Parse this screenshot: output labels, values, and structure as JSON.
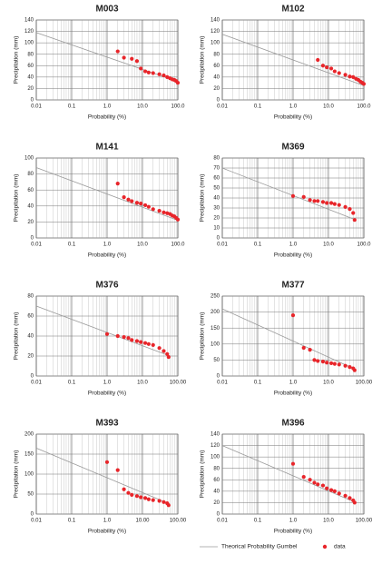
{
  "chart_data": [
    {
      "type": "scatter",
      "title": "M003",
      "xlabel": "Probability (%)",
      "ylabel": "Precipitation (mm)",
      "log_x": true,
      "grid": true,
      "xlim": [
        0.01,
        100
      ],
      "xticks": [
        0.01,
        0.1,
        {
          "value": 1,
          "label": "1.0"
        },
        {
          "value": 10,
          "label": "10.0"
        },
        {
          "value": 100,
          "label": "100.0"
        }
      ],
      "ylim": [
        0,
        140
      ],
      "yticks": [
        0,
        20,
        40,
        60,
        80,
        100,
        120,
        140
      ],
      "series": [
        {
          "style": "line",
          "color": "#9a9a9a",
          "x": [
            0.01,
            100
          ],
          "values": [
            118,
            32
          ]
        },
        {
          "style": "points",
          "color": "#e8252a",
          "x": [
            2,
            3,
            5,
            7,
            9,
            12,
            15,
            20,
            30,
            40,
            50,
            60,
            70,
            80,
            90,
            100
          ],
          "values": [
            85,
            74,
            72,
            68,
            55,
            50,
            48,
            47,
            45,
            43,
            40,
            38,
            36,
            35,
            33,
            30
          ]
        }
      ]
    },
    {
      "type": "scatter",
      "title": "M102",
      "xlabel": "Probability (%)",
      "ylabel": "Precipitation (mm)",
      "log_x": true,
      "grid": true,
      "xlim": [
        0.01,
        100
      ],
      "xticks": [
        0.01,
        0.1,
        {
          "value": 1,
          "label": "1.0"
        },
        {
          "value": 10,
          "label": "10.0"
        },
        {
          "value": 100,
          "label": "100.0"
        }
      ],
      "ylim": [
        0,
        140
      ],
      "yticks": [
        0,
        20,
        40,
        60,
        80,
        100,
        120,
        140
      ],
      "series": [
        {
          "style": "line",
          "color": "#9a9a9a",
          "x": [
            0.01,
            100
          ],
          "values": [
            115,
            25
          ]
        },
        {
          "style": "points",
          "color": "#e8252a",
          "x": [
            5,
            7,
            9,
            12,
            15,
            20,
            30,
            40,
            50,
            60,
            70,
            80,
            90,
            100
          ],
          "values": [
            70,
            60,
            57,
            55,
            50,
            47,
            44,
            41,
            40,
            37,
            35,
            32,
            30,
            28
          ]
        }
      ]
    },
    {
      "type": "scatter",
      "title": "M141",
      "xlabel": "Probability (%)",
      "ylabel": "Precipitation (mm)",
      "log_x": true,
      "grid": true,
      "xlim": [
        0.01,
        100
      ],
      "xticks": [
        0.01,
        0.1,
        {
          "value": 1,
          "label": "1.0"
        },
        {
          "value": 10,
          "label": "10.0"
        },
        {
          "value": 100,
          "label": "100.0"
        }
      ],
      "ylim": [
        0,
        100
      ],
      "yticks": [
        0,
        20,
        40,
        60,
        80,
        100
      ],
      "series": [
        {
          "style": "line",
          "color": "#9a9a9a",
          "x": [
            0.01,
            100
          ],
          "values": [
            88,
            22
          ]
        },
        {
          "style": "points",
          "color": "#e8252a",
          "x": [
            2,
            3,
            4,
            5,
            7,
            9,
            12,
            15,
            20,
            30,
            40,
            50,
            60,
            70,
            80,
            90,
            100
          ],
          "values": [
            68,
            51,
            48,
            46,
            44,
            43,
            41,
            39,
            36,
            34,
            32,
            31,
            30,
            28,
            27,
            25,
            23
          ]
        }
      ]
    },
    {
      "type": "scatter",
      "title": "M369",
      "xlabel": "Probability (%)",
      "ylabel": "Precipitation (mm)",
      "log_x": true,
      "grid": true,
      "xlim": [
        0.01,
        100
      ],
      "xticks": [
        0.01,
        0.1,
        {
          "value": 1,
          "label": "1.0"
        },
        {
          "value": 10,
          "label": "10.0"
        },
        {
          "value": 100,
          "label": "100.0"
        }
      ],
      "ylim": [
        0,
        80
      ],
      "yticks": [
        0,
        10,
        20,
        30,
        40,
        50,
        60,
        70,
        80
      ],
      "series": [
        {
          "style": "line",
          "color": "#9a9a9a",
          "x": [
            0.01,
            60
          ],
          "values": [
            70,
            18
          ]
        },
        {
          "style": "points",
          "color": "#e8252a",
          "x": [
            1,
            2,
            3,
            4,
            5,
            7,
            9,
            12,
            15,
            20,
            30,
            40,
            50,
            55
          ],
          "values": [
            42,
            41,
            38,
            37,
            37,
            36,
            35,
            35,
            34,
            33,
            31,
            29,
            25,
            18
          ]
        }
      ]
    },
    {
      "type": "scatter",
      "title": "M376",
      "xlabel": "Probability (%)",
      "ylabel": "Precipitation (mm)",
      "log_x": true,
      "grid": true,
      "xlim": [
        0.01,
        100
      ],
      "xticks": [
        0.01,
        0.1,
        {
          "value": 1,
          "label": "1.0"
        },
        {
          "value": 10,
          "label": "10.0"
        },
        {
          "value": 100,
          "label": "100.00"
        }
      ],
      "ylim": [
        0,
        80
      ],
      "yticks": [
        0,
        20,
        40,
        60,
        80
      ],
      "series": [
        {
          "style": "line",
          "color": "#9a9a9a",
          "x": [
            0.01,
            60
          ],
          "values": [
            70,
            20
          ]
        },
        {
          "style": "points",
          "color": "#e8252a",
          "x": [
            1,
            2,
            3,
            4,
            5,
            7,
            9,
            12,
            15,
            20,
            30,
            40,
            50,
            55
          ],
          "values": [
            42,
            40,
            39,
            38,
            36,
            35,
            34,
            33,
            32,
            31,
            28,
            25,
            22,
            19
          ]
        }
      ]
    },
    {
      "type": "scatter",
      "title": "M377",
      "xlabel": "Probability (%)",
      "ylabel": "Precipitation (mm)",
      "log_x": true,
      "grid": true,
      "xlim": [
        0.01,
        100
      ],
      "xticks": [
        0.01,
        0.1,
        {
          "value": 1,
          "label": "1.0"
        },
        {
          "value": 10,
          "label": "10.0"
        },
        {
          "value": 100,
          "label": "100.00"
        }
      ],
      "ylim": [
        0,
        250
      ],
      "yticks": [
        0,
        50,
        100,
        150,
        200,
        250
      ],
      "series": [
        {
          "style": "line",
          "color": "#9a9a9a",
          "x": [
            0.01,
            60
          ],
          "values": [
            210,
            20
          ]
        },
        {
          "style": "points",
          "color": "#e8252a",
          "x": [
            1,
            2,
            3,
            4,
            5,
            7,
            9,
            12,
            15,
            20,
            30,
            40,
            50,
            55
          ],
          "values": [
            190,
            88,
            82,
            50,
            47,
            45,
            42,
            40,
            38,
            36,
            32,
            28,
            24,
            18
          ]
        }
      ]
    },
    {
      "type": "scatter",
      "title": "M393",
      "xlabel": "Probability (%)",
      "ylabel": "Precipitation (mm)",
      "log_x": true,
      "grid": true,
      "xlim": [
        0.01,
        100
      ],
      "xticks": [
        0.01,
        0.1,
        {
          "value": 1,
          "label": "1.0"
        },
        {
          "value": 10,
          "label": "10.00"
        },
        {
          "value": 100,
          "label": "100.00"
        }
      ],
      "ylim": [
        0,
        200
      ],
      "yticks": [
        0,
        50,
        100,
        150,
        200
      ],
      "series": [
        {
          "style": "line",
          "color": "#9a9a9a",
          "x": [
            0.01,
            60
          ],
          "values": [
            165,
            25
          ]
        },
        {
          "style": "points",
          "color": "#e8252a",
          "x": [
            1,
            2,
            3,
            4,
            5,
            7,
            9,
            12,
            15,
            20,
            30,
            40,
            50,
            55
          ],
          "values": [
            130,
            110,
            62,
            53,
            48,
            45,
            42,
            40,
            37,
            35,
            33,
            30,
            27,
            22
          ]
        }
      ]
    },
    {
      "type": "scatter",
      "title": "M396",
      "xlabel": "Probability (%)",
      "ylabel": "Precipitation (mm)",
      "log_x": true,
      "grid": true,
      "xlim": [
        0.01,
        100
      ],
      "xticks": [
        0.01,
        0.1,
        {
          "value": 1,
          "label": "1.0"
        },
        {
          "value": 10,
          "label": "10.0"
        },
        {
          "value": 100,
          "label": "100.00"
        }
      ],
      "ylim": [
        0,
        140
      ],
      "yticks": [
        0,
        20,
        40,
        60,
        80,
        100,
        120,
        140
      ],
      "series": [
        {
          "style": "line",
          "color": "#9a9a9a",
          "x": [
            0.01,
            60
          ],
          "values": [
            120,
            20
          ]
        },
        {
          "style": "points",
          "color": "#e8252a",
          "x": [
            1,
            2,
            3,
            4,
            5,
            7,
            9,
            12,
            15,
            20,
            30,
            40,
            50,
            55
          ],
          "values": [
            88,
            65,
            60,
            55,
            52,
            50,
            45,
            42,
            40,
            36,
            32,
            28,
            24,
            20
          ]
        }
      ]
    }
  ],
  "legend": {
    "items": [
      {
        "name": "Theorical Probability Gumbel",
        "color": "#9a9a9a"
      },
      {
        "name": "data",
        "color": "#e8252a"
      }
    ]
  }
}
